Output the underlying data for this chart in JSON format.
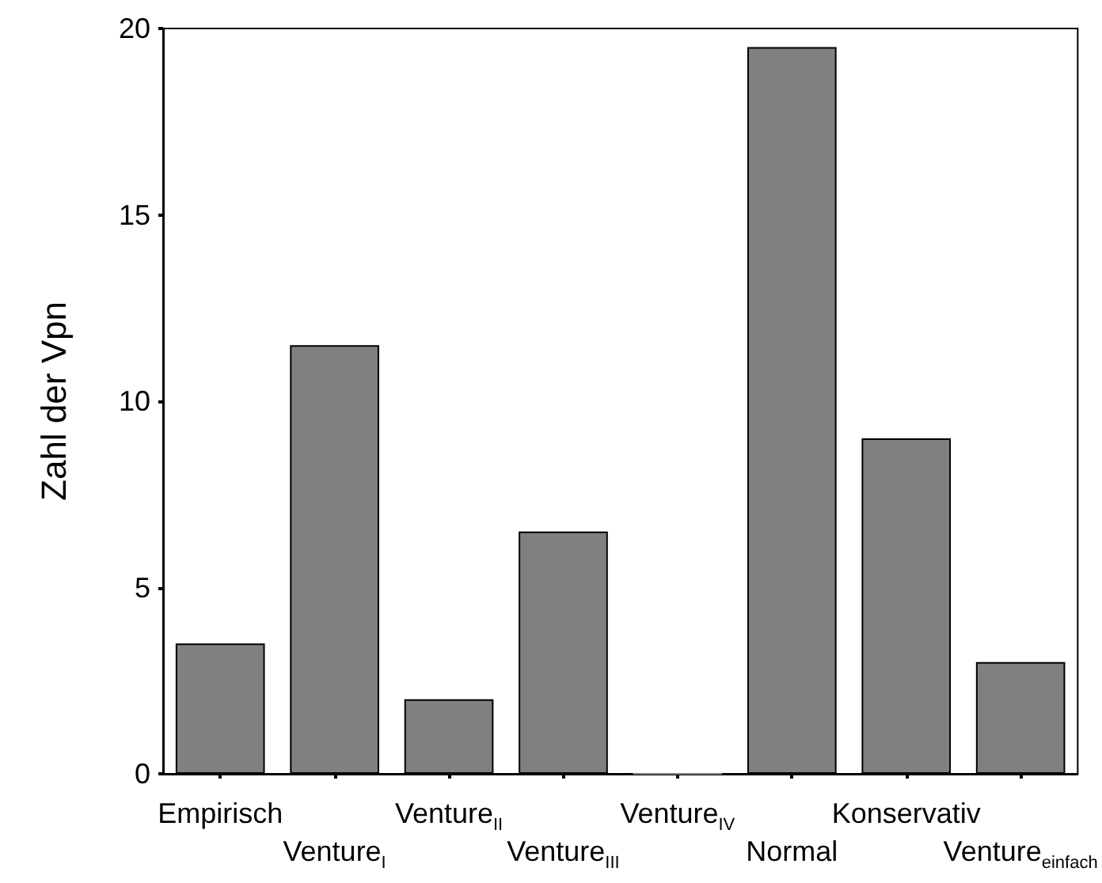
{
  "chart_data": {
    "type": "bar",
    "ylabel": "Zahl der Vpn",
    "categories": [
      "Empirisch",
      "Venture$_{I}$",
      "Venture$_{II}$",
      "Venture$_{III}$",
      "Venture$_{IV}$",
      "Normal",
      "Konservativ",
      "Venture$_{einfach}$"
    ],
    "values": [
      3.5,
      11.5,
      2,
      6.5,
      0,
      19.5,
      9,
      3
    ],
    "color": "#808080",
    "ylim": [
      0,
      20
    ],
    "yticks": [
      0,
      5,
      10,
      15,
      20
    ],
    "grid": false
  }
}
